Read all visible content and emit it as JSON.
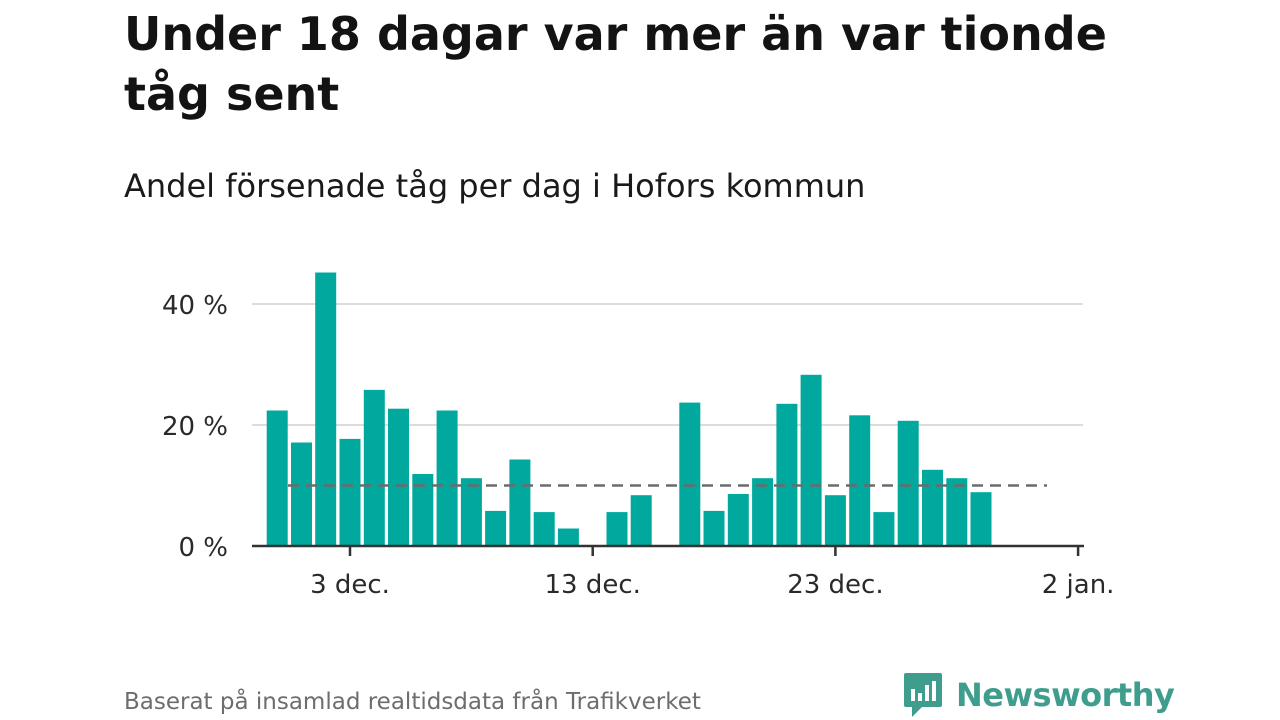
{
  "page": {
    "title": "Under 18 dagar var mer än var tionde tåg sent",
    "subtitle": "Andel försenade tåg per dag i Hofors kommun",
    "source": "Baserat på insamlad realtidsdata från Trafikverket",
    "logo_text": "Newsworthy"
  },
  "colors": {
    "bar": "#00a89d",
    "grid": "#dcdcdc",
    "axis": "#333333",
    "reference_line": "#6b6b6b",
    "logo": "#3f9d8d"
  },
  "chart_data": {
    "type": "bar",
    "title": "Under 18 dagar var mer än var tionde tåg sent",
    "subtitle": "Andel försenade tåg per dag i Hofors kommun",
    "x": [
      "2023-11-30",
      "2023-12-01",
      "2023-12-02",
      "2023-12-03",
      "2023-12-04",
      "2023-12-05",
      "2023-12-06",
      "2023-12-07",
      "2023-12-08",
      "2023-12-09",
      "2023-12-10",
      "2023-12-11",
      "2023-12-12",
      "2023-12-13",
      "2023-12-14",
      "2023-12-15",
      "2023-12-16",
      "2023-12-17",
      "2023-12-18",
      "2023-12-19",
      "2023-12-20",
      "2023-12-21",
      "2023-12-22",
      "2023-12-23",
      "2023-12-24",
      "2023-12-25",
      "2023-12-26",
      "2023-12-27",
      "2023-12-28",
      "2023-12-29",
      "2023-12-30",
      "2023-12-31"
    ],
    "values": [
      22.4,
      17.1,
      45.2,
      17.7,
      25.8,
      22.7,
      11.9,
      22.4,
      11.2,
      5.8,
      14.3,
      5.6,
      2.9,
      null,
      5.6,
      8.4,
      null,
      23.7,
      5.8,
      8.6,
      11.2,
      23.5,
      28.3,
      8.4,
      21.6,
      5.6,
      20.7,
      12.6,
      11.2,
      8.9,
      null,
      null
    ],
    "reference_line": 10,
    "ylim": [
      0,
      45
    ],
    "y_ticks": [
      0,
      20,
      40
    ],
    "y_tick_labels": [
      "0 %",
      "20 %",
      "40 %"
    ],
    "x_ticks": [
      "2023-12-03",
      "2023-12-13",
      "2023-12-23",
      "2024-01-02"
    ],
    "x_tick_labels": [
      "3 dec.",
      "13 dec.",
      "23 dec.",
      "2 jan."
    ],
    "xlabel": "",
    "ylabel": "",
    "grid": true,
    "legend": "none"
  }
}
